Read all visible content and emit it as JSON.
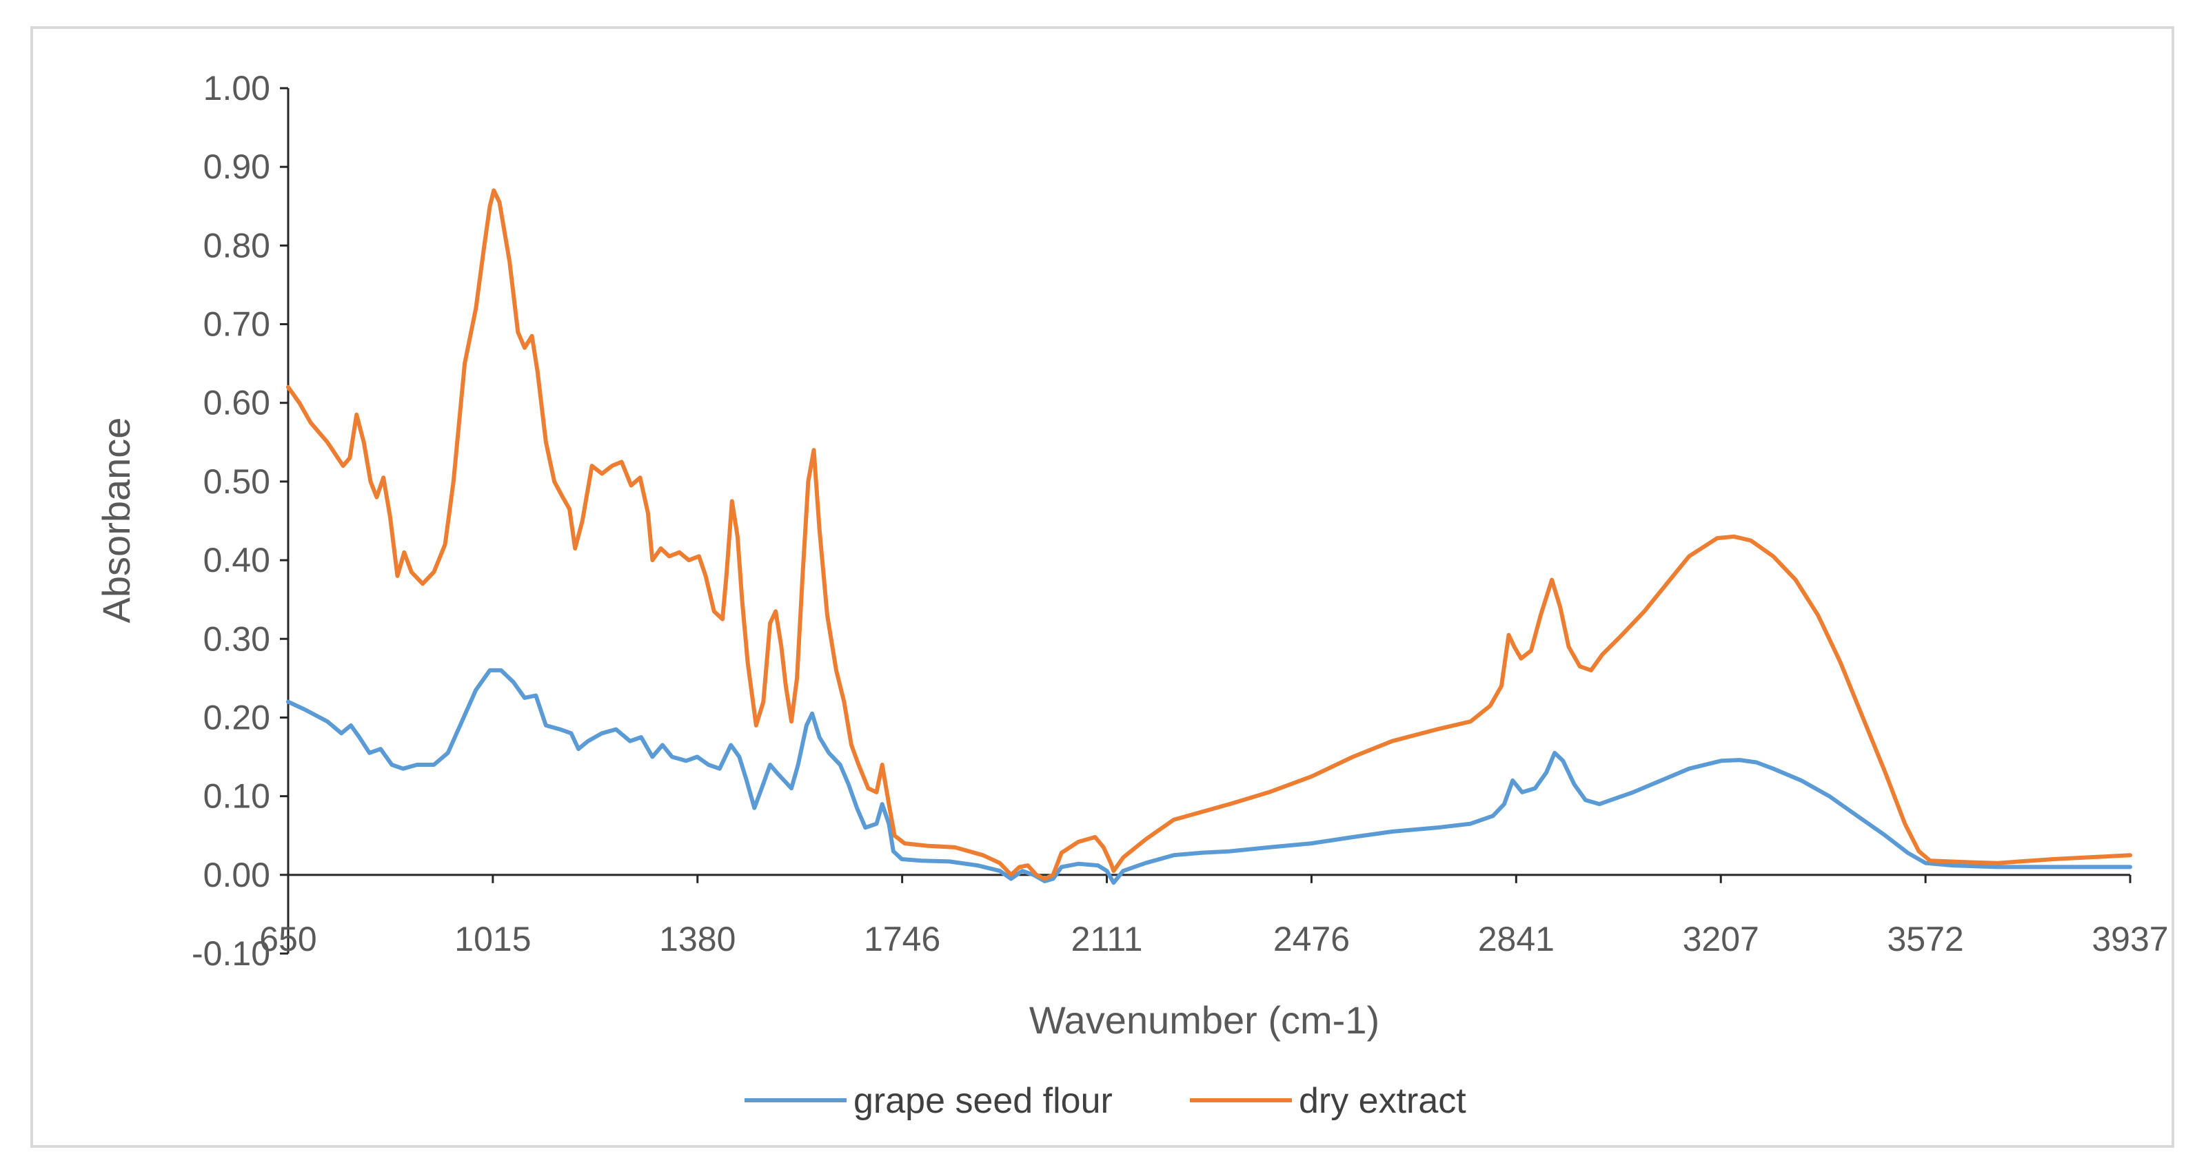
{
  "chart_data": {
    "type": "line",
    "title": "",
    "xlabel": "Wavenumber (cm-1)",
    "ylabel": "Absorbance",
    "xlim": [
      650,
      3937
    ],
    "ylim": [
      -0.1,
      1.0
    ],
    "x_tick_labels": [
      "650",
      "1015",
      "1380",
      "1746",
      "2111",
      "2476",
      "2841",
      "3207",
      "3572",
      "3937"
    ],
    "y_tick_labels": [
      "1.00",
      "0.90",
      "0.80",
      "0.70",
      "0.60",
      "0.50",
      "0.40",
      "0.30",
      "0.20",
      "0.10",
      "0.00",
      "-0.10"
    ],
    "legend_position": "bottom",
    "grid": false,
    "series": [
      {
        "name": "grape seed flour",
        "color": "#5B9BD5",
        "points": [
          [
            650,
            0.22
          ],
          [
            680,
            0.21
          ],
          [
            720,
            0.195
          ],
          [
            745,
            0.18
          ],
          [
            762,
            0.19
          ],
          [
            777,
            0.175
          ],
          [
            795,
            0.155
          ],
          [
            815,
            0.16
          ],
          [
            835,
            0.14
          ],
          [
            855,
            0.135
          ],
          [
            880,
            0.14
          ],
          [
            910,
            0.14
          ],
          [
            935,
            0.155
          ],
          [
            960,
            0.195
          ],
          [
            985,
            0.235
          ],
          [
            1010,
            0.26
          ],
          [
            1030,
            0.26
          ],
          [
            1052,
            0.245
          ],
          [
            1072,
            0.225
          ],
          [
            1092,
            0.228
          ],
          [
            1110,
            0.19
          ],
          [
            1135,
            0.185
          ],
          [
            1155,
            0.18
          ],
          [
            1168,
            0.16
          ],
          [
            1185,
            0.17
          ],
          [
            1210,
            0.18
          ],
          [
            1235,
            0.185
          ],
          [
            1260,
            0.17
          ],
          [
            1280,
            0.175
          ],
          [
            1300,
            0.15
          ],
          [
            1318,
            0.165
          ],
          [
            1335,
            0.15
          ],
          [
            1360,
            0.145
          ],
          [
            1380,
            0.15
          ],
          [
            1400,
            0.14
          ],
          [
            1420,
            0.135
          ],
          [
            1440,
            0.165
          ],
          [
            1455,
            0.15
          ],
          [
            1468,
            0.12
          ],
          [
            1482,
            0.085
          ],
          [
            1495,
            0.11
          ],
          [
            1510,
            0.14
          ],
          [
            1522,
            0.13
          ],
          [
            1535,
            0.12
          ],
          [
            1548,
            0.11
          ],
          [
            1560,
            0.14
          ],
          [
            1575,
            0.19
          ],
          [
            1585,
            0.205
          ],
          [
            1598,
            0.175
          ],
          [
            1615,
            0.155
          ],
          [
            1635,
            0.14
          ],
          [
            1650,
            0.115
          ],
          [
            1665,
            0.085
          ],
          [
            1680,
            0.06
          ],
          [
            1700,
            0.065
          ],
          [
            1710,
            0.09
          ],
          [
            1722,
            0.065
          ],
          [
            1730,
            0.03
          ],
          [
            1745,
            0.02
          ],
          [
            1780,
            0.018
          ],
          [
            1830,
            0.017
          ],
          [
            1880,
            0.012
          ],
          [
            1920,
            0.005
          ],
          [
            1940,
            -0.005
          ],
          [
            1960,
            0.005
          ],
          [
            1980,
            0.0
          ],
          [
            2000,
            -0.008
          ],
          [
            2015,
            -0.005
          ],
          [
            2030,
            0.01
          ],
          [
            2060,
            0.014
          ],
          [
            2095,
            0.012
          ],
          [
            2111,
            0.005
          ],
          [
            2123,
            -0.01
          ],
          [
            2140,
            0.005
          ],
          [
            2180,
            0.015
          ],
          [
            2230,
            0.025
          ],
          [
            2280,
            0.028
          ],
          [
            2330,
            0.03
          ],
          [
            2400,
            0.035
          ],
          [
            2476,
            0.04
          ],
          [
            2550,
            0.048
          ],
          [
            2620,
            0.055
          ],
          [
            2700,
            0.06
          ],
          [
            2760,
            0.065
          ],
          [
            2800,
            0.075
          ],
          [
            2820,
            0.09
          ],
          [
            2835,
            0.12
          ],
          [
            2852,
            0.105
          ],
          [
            2875,
            0.11
          ],
          [
            2895,
            0.13
          ],
          [
            2910,
            0.155
          ],
          [
            2925,
            0.145
          ],
          [
            2945,
            0.115
          ],
          [
            2965,
            0.095
          ],
          [
            2990,
            0.09
          ],
          [
            3010,
            0.095
          ],
          [
            3050,
            0.105
          ],
          [
            3100,
            0.12
          ],
          [
            3150,
            0.135
          ],
          [
            3207,
            0.145
          ],
          [
            3240,
            0.146
          ],
          [
            3270,
            0.143
          ],
          [
            3300,
            0.135
          ],
          [
            3350,
            0.12
          ],
          [
            3400,
            0.1
          ],
          [
            3450,
            0.075
          ],
          [
            3500,
            0.05
          ],
          [
            3540,
            0.028
          ],
          [
            3572,
            0.015
          ],
          [
            3620,
            0.012
          ],
          [
            3700,
            0.01
          ],
          [
            3800,
            0.01
          ],
          [
            3937,
            0.01
          ]
        ]
      },
      {
        "name": "dry extract",
        "color": "#ED7D31",
        "points": [
          [
            650,
            0.62
          ],
          [
            670,
            0.6
          ],
          [
            690,
            0.575
          ],
          [
            720,
            0.55
          ],
          [
            748,
            0.52
          ],
          [
            760,
            0.53
          ],
          [
            772,
            0.585
          ],
          [
            785,
            0.55
          ],
          [
            797,
            0.5
          ],
          [
            808,
            0.48
          ],
          [
            820,
            0.505
          ],
          [
            832,
            0.455
          ],
          [
            845,
            0.38
          ],
          [
            857,
            0.41
          ],
          [
            870,
            0.385
          ],
          [
            890,
            0.37
          ],
          [
            910,
            0.385
          ],
          [
            930,
            0.42
          ],
          [
            945,
            0.5
          ],
          [
            965,
            0.65
          ],
          [
            985,
            0.72
          ],
          [
            1000,
            0.8
          ],
          [
            1010,
            0.85
          ],
          [
            1017,
            0.87
          ],
          [
            1027,
            0.855
          ],
          [
            1045,
            0.78
          ],
          [
            1060,
            0.69
          ],
          [
            1072,
            0.67
          ],
          [
            1085,
            0.685
          ],
          [
            1095,
            0.64
          ],
          [
            1110,
            0.55
          ],
          [
            1125,
            0.5
          ],
          [
            1140,
            0.48
          ],
          [
            1152,
            0.465
          ],
          [
            1162,
            0.415
          ],
          [
            1175,
            0.45
          ],
          [
            1192,
            0.52
          ],
          [
            1210,
            0.51
          ],
          [
            1228,
            0.52
          ],
          [
            1245,
            0.525
          ],
          [
            1262,
            0.495
          ],
          [
            1278,
            0.505
          ],
          [
            1292,
            0.46
          ],
          [
            1300,
            0.4
          ],
          [
            1315,
            0.415
          ],
          [
            1330,
            0.405
          ],
          [
            1348,
            0.41
          ],
          [
            1365,
            0.4
          ],
          [
            1383,
            0.405
          ],
          [
            1395,
            0.38
          ],
          [
            1410,
            0.335
          ],
          [
            1425,
            0.325
          ],
          [
            1432,
            0.38
          ],
          [
            1442,
            0.475
          ],
          [
            1452,
            0.43
          ],
          [
            1460,
            0.35
          ],
          [
            1470,
            0.27
          ],
          [
            1485,
            0.19
          ],
          [
            1498,
            0.22
          ],
          [
            1510,
            0.32
          ],
          [
            1520,
            0.335
          ],
          [
            1530,
            0.29
          ],
          [
            1538,
            0.24
          ],
          [
            1548,
            0.195
          ],
          [
            1558,
            0.25
          ],
          [
            1568,
            0.38
          ],
          [
            1578,
            0.5
          ],
          [
            1588,
            0.54
          ],
          [
            1598,
            0.44
          ],
          [
            1612,
            0.33
          ],
          [
            1628,
            0.26
          ],
          [
            1642,
            0.22
          ],
          [
            1655,
            0.165
          ],
          [
            1668,
            0.14
          ],
          [
            1685,
            0.11
          ],
          [
            1700,
            0.105
          ],
          [
            1710,
            0.14
          ],
          [
            1722,
            0.09
          ],
          [
            1732,
            0.05
          ],
          [
            1750,
            0.04
          ],
          [
            1790,
            0.037
          ],
          [
            1840,
            0.035
          ],
          [
            1890,
            0.025
          ],
          [
            1920,
            0.015
          ],
          [
            1940,
            0.0
          ],
          [
            1955,
            0.01
          ],
          [
            1970,
            0.012
          ],
          [
            1985,
            0.0
          ],
          [
            2000,
            -0.005
          ],
          [
            2015,
            0.0
          ],
          [
            2030,
            0.028
          ],
          [
            2060,
            0.042
          ],
          [
            2090,
            0.048
          ],
          [
            2105,
            0.035
          ],
          [
            2118,
            0.015
          ],
          [
            2123,
            0.005
          ],
          [
            2140,
            0.022
          ],
          [
            2180,
            0.045
          ],
          [
            2230,
            0.07
          ],
          [
            2280,
            0.08
          ],
          [
            2330,
            0.09
          ],
          [
            2400,
            0.105
          ],
          [
            2476,
            0.125
          ],
          [
            2550,
            0.15
          ],
          [
            2620,
            0.17
          ],
          [
            2700,
            0.185
          ],
          [
            2760,
            0.195
          ],
          [
            2795,
            0.215
          ],
          [
            2815,
            0.24
          ],
          [
            2828,
            0.305
          ],
          [
            2838,
            0.29
          ],
          [
            2850,
            0.275
          ],
          [
            2868,
            0.285
          ],
          [
            2885,
            0.33
          ],
          [
            2905,
            0.375
          ],
          [
            2920,
            0.34
          ],
          [
            2935,
            0.29
          ],
          [
            2955,
            0.265
          ],
          [
            2975,
            0.26
          ],
          [
            2995,
            0.28
          ],
          [
            3030,
            0.305
          ],
          [
            3070,
            0.335
          ],
          [
            3110,
            0.37
          ],
          [
            3150,
            0.405
          ],
          [
            3200,
            0.428
          ],
          [
            3230,
            0.43
          ],
          [
            3260,
            0.425
          ],
          [
            3300,
            0.405
          ],
          [
            3340,
            0.375
          ],
          [
            3380,
            0.33
          ],
          [
            3420,
            0.27
          ],
          [
            3460,
            0.2
          ],
          [
            3500,
            0.13
          ],
          [
            3535,
            0.065
          ],
          [
            3560,
            0.03
          ],
          [
            3580,
            0.018
          ],
          [
            3650,
            0.016
          ],
          [
            3700,
            0.015
          ],
          [
            3800,
            0.02
          ],
          [
            3937,
            0.025
          ]
        ]
      }
    ]
  }
}
